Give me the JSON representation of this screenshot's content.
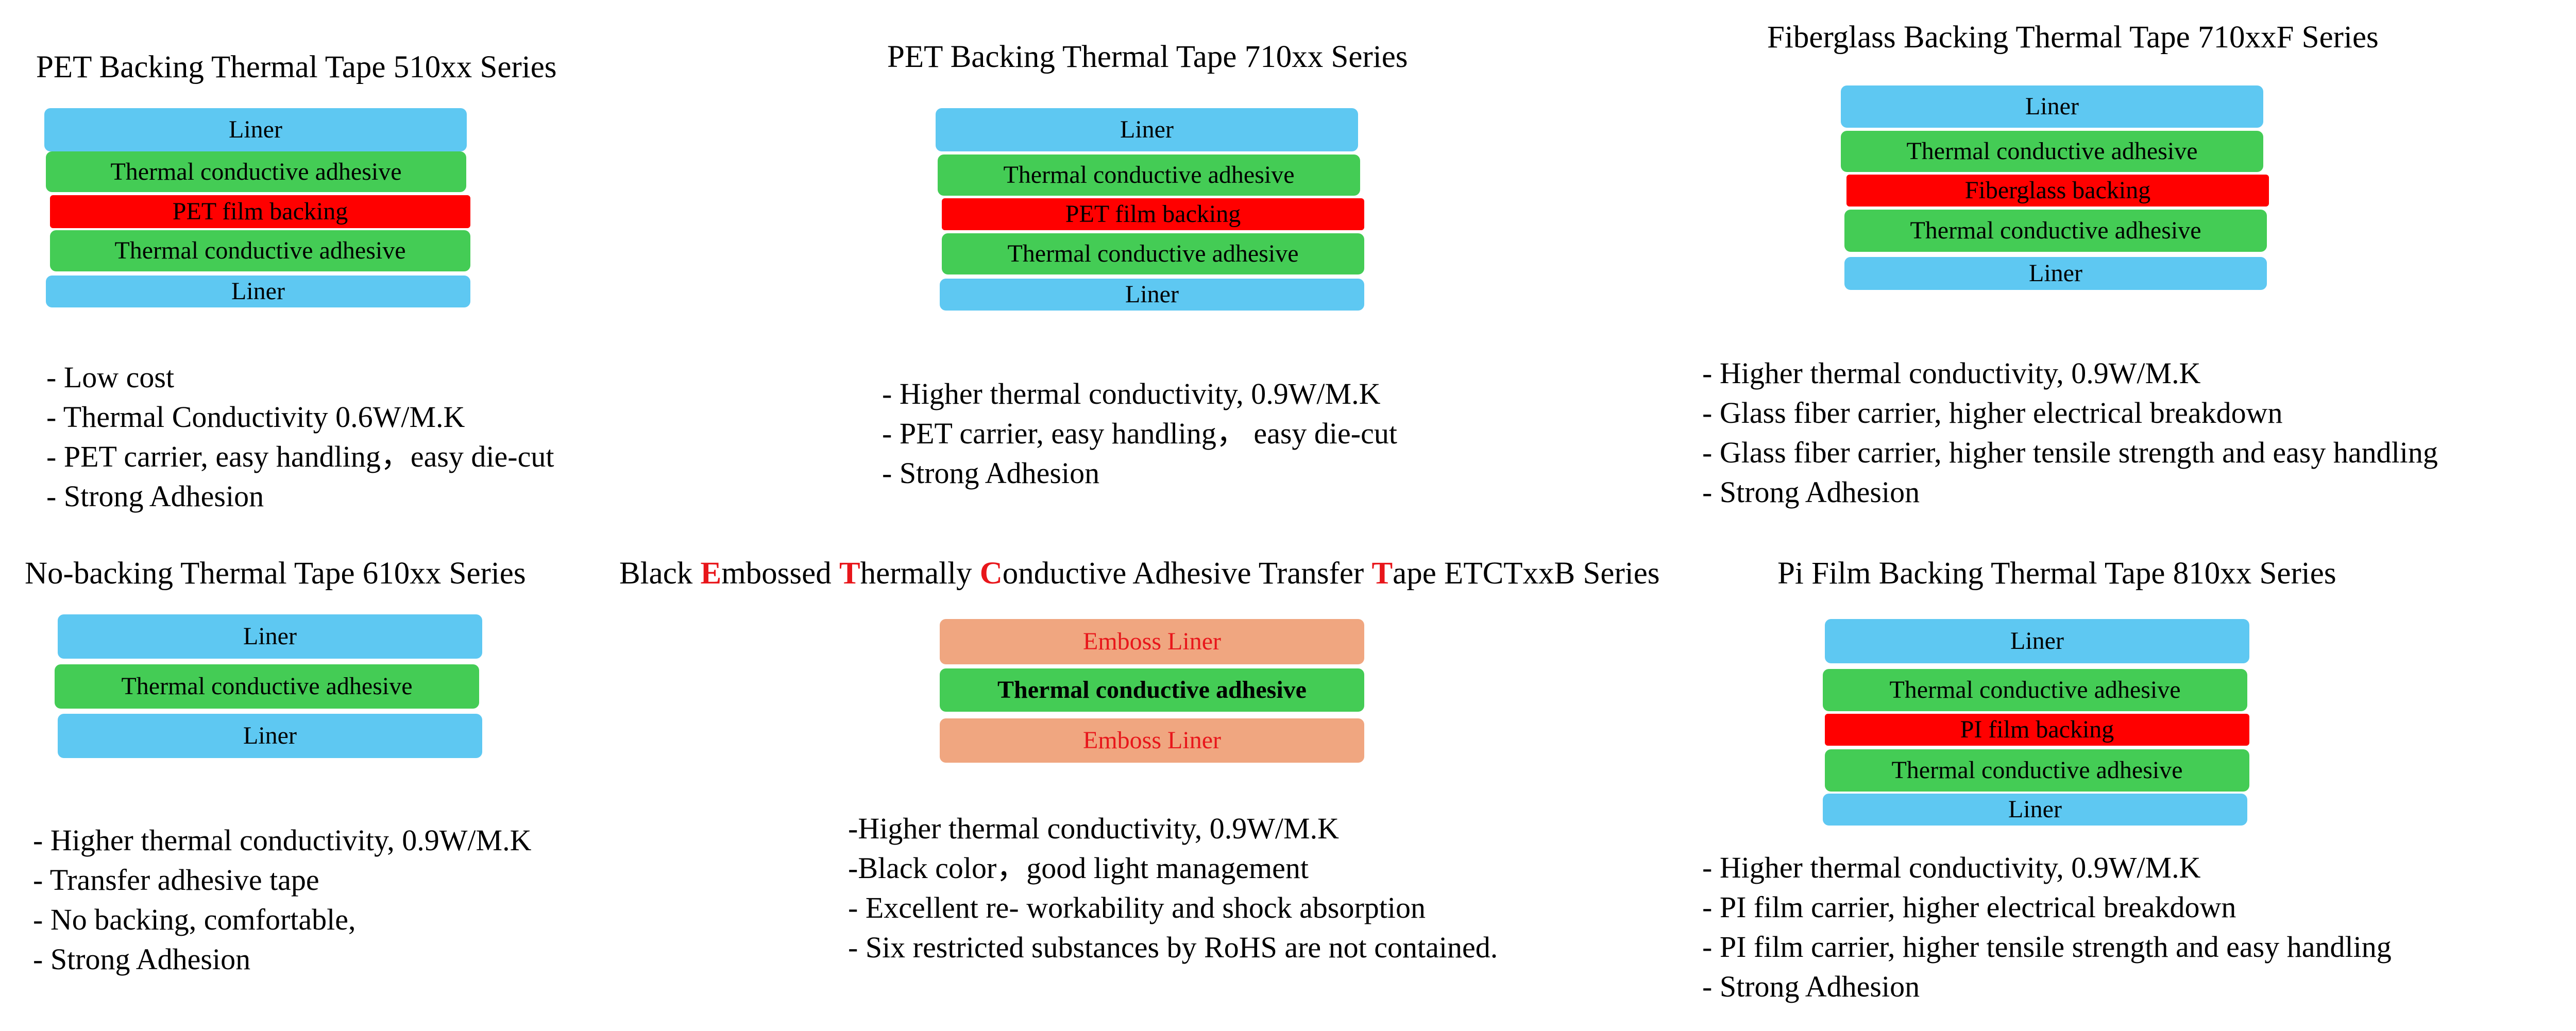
{
  "colors": {
    "liner": "#5ec8f2",
    "adhesive": "#44cc55",
    "backing": "#ff0000",
    "emboss_liner": "#f0a680",
    "highlight_text": "#e8161b"
  },
  "panels": [
    {
      "title": "PET Backing Thermal Tape 510xx Series",
      "layers": [
        "Liner",
        "Thermal conductive adhesive",
        "PET film backing",
        "Thermal conductive adhesive",
        "Liner"
      ],
      "bullets": [
        "- Low cost",
        "- Thermal Conductivity 0.6W/M.K",
        "- PET carrier, easy handling，easy die-cut",
        "- Strong Adhesion"
      ]
    },
    {
      "title": "PET Backing Thermal Tape 710xx  Series",
      "layers": [
        "Liner",
        "Thermal conductive adhesive",
        "PET film backing",
        "Thermal conductive adhesive",
        "Liner"
      ],
      "bullets": [
        "- Higher thermal conductivity, 0.9W/M.K",
        "- PET carrier, easy handling，  easy die-cut",
        "- Strong Adhesion"
      ]
    },
    {
      "title": "Fiberglass  Backing Thermal Tape 710xxF  Series",
      "layers": [
        "Liner",
        "Thermal conductive adhesive",
        "Fiberglass backing",
        "Thermal conductive adhesive",
        "Liner"
      ],
      "bullets": [
        "- Higher thermal conductivity, 0.9W/M.K",
        "- Glass fiber carrier, higher electrical breakdown",
        "- Glass fiber carrier, higher tensile strength and easy handling",
        "- Strong Adhesion"
      ]
    },
    {
      "title": "No-backing Thermal Tape 610xx Series",
      "layers": [
        "Liner",
        "Thermal conductive adhesive",
        "Liner"
      ],
      "bullets": [
        "- Higher thermal conductivity, 0.9W/M.K",
        "- Transfer adhesive tape",
        "- No backing, comfortable,",
        "- Strong Adhesion"
      ]
    },
    {
      "title_parts": [
        "Black ",
        "E",
        "mbossed ",
        "T",
        "hermally ",
        "C",
        "onductive Adhesive Transfer ",
        "T",
        "ape ETCTxxB Series"
      ],
      "layers": [
        "Emboss Liner",
        "Thermal conductive adhesive",
        "Emboss Liner"
      ],
      "bullets": [
        "-Higher thermal conductivity, 0.9W/M.K",
        "-Black color，good light management",
        "- Excellent re- workability and shock absorption",
        "- Six restricted substances by RoHS are not contained."
      ]
    },
    {
      "title": "Pi Film Backing Thermal Tape 810xx Series",
      "layers": [
        "Liner",
        "Thermal conductive adhesive",
        "PI film  backing",
        "Thermal conductive adhesive",
        "Liner"
      ],
      "bullets": [
        "- Higher thermal conductivity, 0.9W/M.K",
        "- PI film carrier, higher electrical breakdown",
        "- PI film carrier, higher tensile strength and easy handling",
        "- Strong Adhesion"
      ]
    }
  ]
}
